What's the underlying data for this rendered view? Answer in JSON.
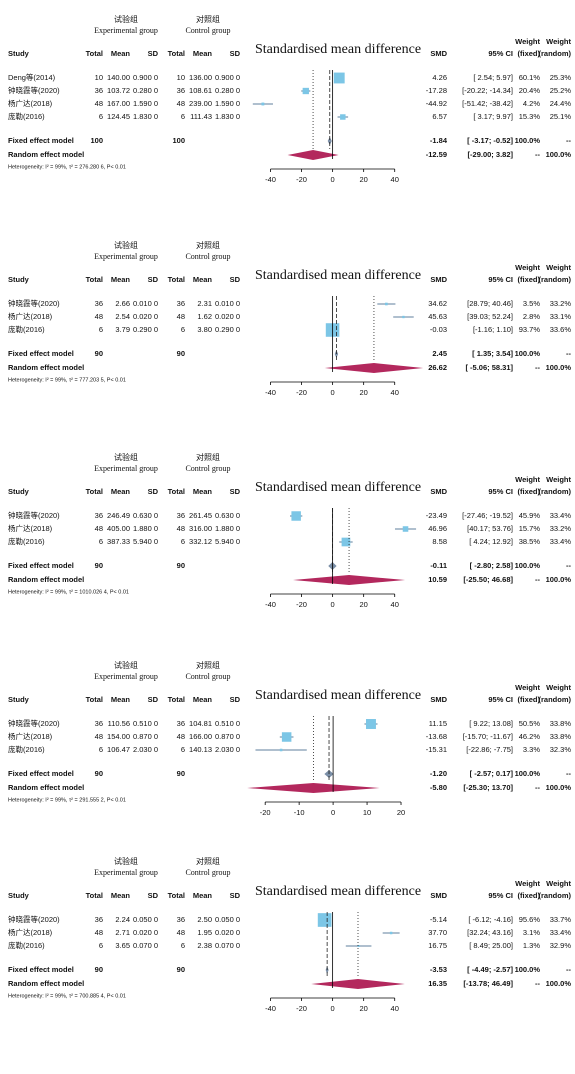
{
  "chart_data": [
    {
      "type": "forest",
      "title": "Standardised mean difference",
      "groups": [
        {
          "cn": "试验组",
          "en": "Experimental group"
        },
        {
          "cn": "对照组",
          "en": "Control group"
        }
      ],
      "columns": [
        "Study",
        "Total",
        "Mean",
        "SD",
        "Total",
        "Mean",
        "SD",
        "SMD",
        "95% CI"
      ],
      "weight_header": "Weight",
      "weight_cols": [
        "(fixed)",
        "(random)"
      ],
      "rows": [
        [
          "Deng等(2014)",
          "10",
          "140.00",
          "0.900 0",
          "10",
          "136.00",
          "0.900 0",
          "4.26",
          "[ 2.54;  5.97]",
          "60.1%",
          "25.3%"
        ],
        [
          "钟晓霞等(2020)",
          "36",
          "103.72",
          "0.280 0",
          "36",
          "108.61",
          "0.280 0",
          "-17.28",
          "[-20.22; -14.34]",
          "20.4%",
          "25.2%"
        ],
        [
          "杨广达(2018)",
          "48",
          "167.00",
          "1.590 0",
          "48",
          "239.00",
          "1.590 0",
          "-44.92",
          "[-51.42; -38.42]",
          "4.2%",
          "24.4%"
        ],
        [
          "庞勒(2016)",
          "6",
          "124.45",
          "1.830 0",
          "6",
          "111.43",
          "1.830 0",
          "6.57",
          "[ 3.17;  9.97]",
          "15.3%",
          "25.1%"
        ]
      ],
      "smd": [
        4.26,
        -17.28,
        -44.92,
        6.57
      ],
      "ci_low": [
        2.54,
        -20.22,
        -51.42,
        3.17
      ],
      "ci_high": [
        5.97,
        -14.34,
        -38.42,
        9.97
      ],
      "weight_fixed": [
        60.1,
        20.4,
        4.2,
        15.3
      ],
      "summary": [
        {
          "label": "Fixed effect model",
          "totals": [
            "100",
            "100"
          ],
          "cells": [
            "-1.84",
            "[ -3.17;  -0.52]",
            "100.0%",
            "--"
          ],
          "smd": -1.84,
          "ci": [
            -3.17,
            -0.52
          ]
        },
        {
          "label": "Random effect  model",
          "cells": [
            "-12.59",
            "[-29.00;  3.82]",
            "--",
            "100.0%"
          ],
          "smd": -12.59,
          "ci": [
            -29.0,
            3.82
          ]
        }
      ],
      "heterogeneity": "Heterogeneity: I² = 99%, τ² = 276.280 6, P< 0.01",
      "xlim": [
        -50,
        55
      ],
      "xticks": [
        -40,
        -20,
        0,
        20,
        40
      ],
      "square_color": "#7cc6e6",
      "ci_color": "#5f7f9c",
      "fixed_color": "#7a8ea6",
      "random_color": "#b3285d"
    },
    {
      "type": "forest",
      "title": "Standardised mean difference",
      "groups": [
        {
          "cn": "试验组",
          "en": "Experimental group"
        },
        {
          "cn": "对照组",
          "en": "Control group"
        }
      ],
      "columns": [
        "Study",
        "Total",
        "Mean",
        "SD",
        "Total",
        "Mean",
        "SD",
        "SMD",
        "95% CI"
      ],
      "weight_header": "Weight",
      "weight_cols": [
        "(fixed)",
        "(random)"
      ],
      "rows": [
        [
          "钟晓霞等(2020)",
          "36",
          "2.66",
          "0.010 0",
          "36",
          "2.31",
          "0.010 0",
          "34.62",
          "[28.79; 40.46]",
          "3.5%",
          "33.2%"
        ],
        [
          "杨广达(2018)",
          "48",
          "2.54",
          "0.020 0",
          "48",
          "1.62",
          "0.020 0",
          "45.63",
          "[39.03; 52.24]",
          "2.8%",
          "33.1%"
        ],
        [
          "庞勒(2016)",
          "6",
          "3.79",
          "0.290 0",
          "6",
          "3.80",
          "0.290 0",
          "-0.03",
          "[-1.16;  1.10]",
          "93.7%",
          "33.6%"
        ]
      ],
      "smd": [
        34.62,
        45.63,
        -0.03
      ],
      "ci_low": [
        28.79,
        39.03,
        -1.16
      ],
      "ci_high": [
        40.46,
        52.24,
        1.1
      ],
      "weight_fixed": [
        3.5,
        2.8,
        93.7
      ],
      "summary": [
        {
          "label": "Fixed effect model",
          "totals": [
            "90",
            "90"
          ],
          "cells": [
            "2.45",
            "[ 1.35;  3.54]",
            "100.0%",
            "--"
          ],
          "smd": 2.45,
          "ci": [
            1.35,
            3.54
          ]
        },
        {
          "label": "Random effect  model",
          "cells": [
            "26.62",
            "[ -5.06; 58.31]",
            "--",
            "100.0%"
          ],
          "smd": 26.62,
          "ci": [
            -5.06,
            58.31
          ]
        }
      ],
      "heterogeneity": "Heterogeneity: I² = 99%, τ² = 777.203 5, P< 0.01",
      "xlim": [
        -50,
        55
      ],
      "xticks": [
        -40,
        -20,
        0,
        20,
        40
      ],
      "square_color": "#7cc6e6",
      "ci_color": "#5f7f9c",
      "fixed_color": "#7a8ea6",
      "random_color": "#b3285d"
    },
    {
      "type": "forest",
      "title": "Standardised mean difference",
      "groups": [
        {
          "cn": "试验组",
          "en": "Experimental group"
        },
        {
          "cn": "对照组",
          "en": "Control group"
        }
      ],
      "columns": [
        "Study",
        "Total",
        "Mean",
        "SD",
        "Total",
        "Mean",
        "SD",
        "SMD",
        "95% CI"
      ],
      "weight_header": "Weight",
      "weight_cols": [
        "(fixed)",
        "(random)"
      ],
      "rows": [
        [
          "钟晓霞等(2020)",
          "36",
          "246.49",
          "0.630 0",
          "36",
          "261.45",
          "0.630 0",
          "-23.49",
          "[-27.46; -19.52]",
          "45.9%",
          "33.4%"
        ],
        [
          "杨广达(2018)",
          "48",
          "405.00",
          "1.880 0",
          "48",
          "316.00",
          "1.880 0",
          "46.96",
          "[40.17; 53.76]",
          "15.7%",
          "33.2%"
        ],
        [
          "庞勒(2016)",
          "6",
          "387.33",
          "5.940 0",
          "6",
          "332.12",
          "5.940 0",
          "8.58",
          "[ 4.24; 12.92]",
          "38.5%",
          "33.4%"
        ]
      ],
      "smd": [
        -23.49,
        46.96,
        8.58
      ],
      "ci_low": [
        -27.46,
        40.17,
        4.24
      ],
      "ci_high": [
        -19.52,
        53.76,
        12.92
      ],
      "weight_fixed": [
        45.9,
        15.7,
        38.5
      ],
      "summary": [
        {
          "label": "Fixed effect model",
          "totals": [
            "90",
            "90"
          ],
          "cells": [
            "-0.11",
            "[ -2.80;  2.58]",
            "100.0%",
            "--"
          ],
          "smd": -0.11,
          "ci": [
            -2.8,
            2.58
          ]
        },
        {
          "label": "Random effect  model",
          "cells": [
            "10.59",
            "[-25.50; 46.68]",
            "--",
            "100.0%"
          ],
          "smd": 10.59,
          "ci": [
            -25.5,
            46.68
          ]
        }
      ],
      "heterogeneity": "Heterogeneity: I² = 99%, τ² = 1010.026 4, P< 0.01",
      "xlim": [
        -50,
        55
      ],
      "xticks": [
        -40,
        -20,
        0,
        20,
        40
      ],
      "square_color": "#7cc6e6",
      "ci_color": "#5f7f9c",
      "fixed_color": "#7a8ea6",
      "random_color": "#b3285d"
    },
    {
      "type": "forest",
      "title": "Standardised mean difference",
      "groups": [
        {
          "cn": "试验组",
          "en": "Experimental group"
        },
        {
          "cn": "对照组",
          "en": "Control group"
        }
      ],
      "columns": [
        "Study",
        "Total",
        "Mean",
        "SD",
        "Total",
        "Mean",
        "SD",
        "SMD",
        "95% CI"
      ],
      "weight_header": "Weight",
      "weight_cols": [
        "(fixed)",
        "(random)"
      ],
      "rows": [
        [
          "钟晓霞等(2020)",
          "36",
          "110.56",
          "0.510 0",
          "36",
          "104.81",
          "0.510 0",
          "11.15",
          "[ 9.22; 13.08]",
          "50.5%",
          "33.8%"
        ],
        [
          "杨广达(2018)",
          "48",
          "154.00",
          "0.870 0",
          "48",
          "166.00",
          "0.870 0",
          "-13.68",
          "[-15.70; -11.67]",
          "46.2%",
          "33.8%"
        ],
        [
          "庞勒(2016)",
          "6",
          "106.47",
          "2.030 0",
          "6",
          "140.13",
          "2.030 0",
          "-15.31",
          "[-22.86;  -7.75]",
          "3.3%",
          "32.3%"
        ]
      ],
      "smd": [
        11.15,
        -13.68,
        -15.31
      ],
      "ci_low": [
        9.22,
        -15.7,
        -22.86
      ],
      "ci_high": [
        13.08,
        -11.67,
        -7.75
      ],
      "weight_fixed": [
        50.5,
        46.2,
        3.3
      ],
      "summary": [
        {
          "label": "Fixed effect model",
          "totals": [
            "90",
            "90"
          ],
          "cells": [
            "-1.20",
            "[ -2.57;  0.17]",
            "100.0%",
            "--"
          ],
          "smd": -1.2,
          "ci": [
            -2.57,
            0.17
          ]
        },
        {
          "label": "Random effect  model",
          "cells": [
            "-5.80",
            "[-25.30; 13.70]",
            "--",
            "100.0%"
          ],
          "smd": -5.8,
          "ci": [
            -25.3,
            13.7
          ]
        }
      ],
      "heterogeneity": "Heterogeneity: I² = 99%, τ² = 291.555 2, P< 0.01",
      "xlim": [
        -23,
        25
      ],
      "xticks": [
        -20,
        -10,
        0,
        10,
        20
      ],
      "square_color": "#7cc6e6",
      "ci_color": "#5f7f9c",
      "fixed_color": "#7a8ea6",
      "random_color": "#b3285d"
    },
    {
      "type": "forest",
      "title": "Standardised mean difference",
      "groups": [
        {
          "cn": "试验组",
          "en": "Experimental group"
        },
        {
          "cn": "对照组",
          "en": "Control group"
        }
      ],
      "columns": [
        "Study",
        "Total",
        "Mean",
        "SD",
        "Total",
        "Mean",
        "SD",
        "SMD",
        "95% CI"
      ],
      "weight_header": "Weight",
      "weight_cols": [
        "(fixed)",
        "(random)"
      ],
      "rows": [
        [
          "钟晓霞等(2020)",
          "36",
          "2.24",
          "0.050 0",
          "36",
          "2.50",
          "0.050 0",
          "-5.14",
          "[ -6.12;  -4.16]",
          "95.6%",
          "33.7%"
        ],
        [
          "杨广达(2018)",
          "48",
          "2.71",
          "0.020 0",
          "48",
          "1.95",
          "0.020 0",
          "37.70",
          "[32.24; 43.16]",
          "3.1%",
          "33.4%"
        ],
        [
          "庞勒(2016)",
          "6",
          "3.65",
          "0.070 0",
          "6",
          "2.38",
          "0.070 0",
          "16.75",
          "[ 8.49; 25.00]",
          "1.3%",
          "32.9%"
        ]
      ],
      "smd": [
        -5.14,
        37.7,
        16.75
      ],
      "ci_low": [
        -6.12,
        32.24,
        8.49
      ],
      "ci_high": [
        -4.16,
        43.16,
        25.0
      ],
      "weight_fixed": [
        95.6,
        3.1,
        1.3
      ],
      "summary": [
        {
          "label": "Fixed effect model",
          "totals": [
            "90",
            "90"
          ],
          "cells": [
            "-3.53",
            "[ -4.49;  -2.57]",
            "100.0%",
            "--"
          ],
          "smd": -3.53,
          "ci": [
            -4.49,
            -2.57
          ]
        },
        {
          "label": "Random effect  model",
          "cells": [
            "16.35",
            "[-13.78; 46.49]",
            "--",
            "100.0%"
          ],
          "smd": 16.35,
          "ci": [
            -13.78,
            46.49
          ]
        }
      ],
      "heterogeneity": "Heterogeneity: I² = 99%, τ² = 700.885 4, P< 0.01",
      "xlim": [
        -50,
        55
      ],
      "xticks": [
        -40,
        -20,
        0,
        20,
        40
      ],
      "square_color": "#7cc6e6",
      "ci_color": "#5f7f9c",
      "fixed_color": "#7a8ea6",
      "random_color": "#b3285d"
    }
  ]
}
